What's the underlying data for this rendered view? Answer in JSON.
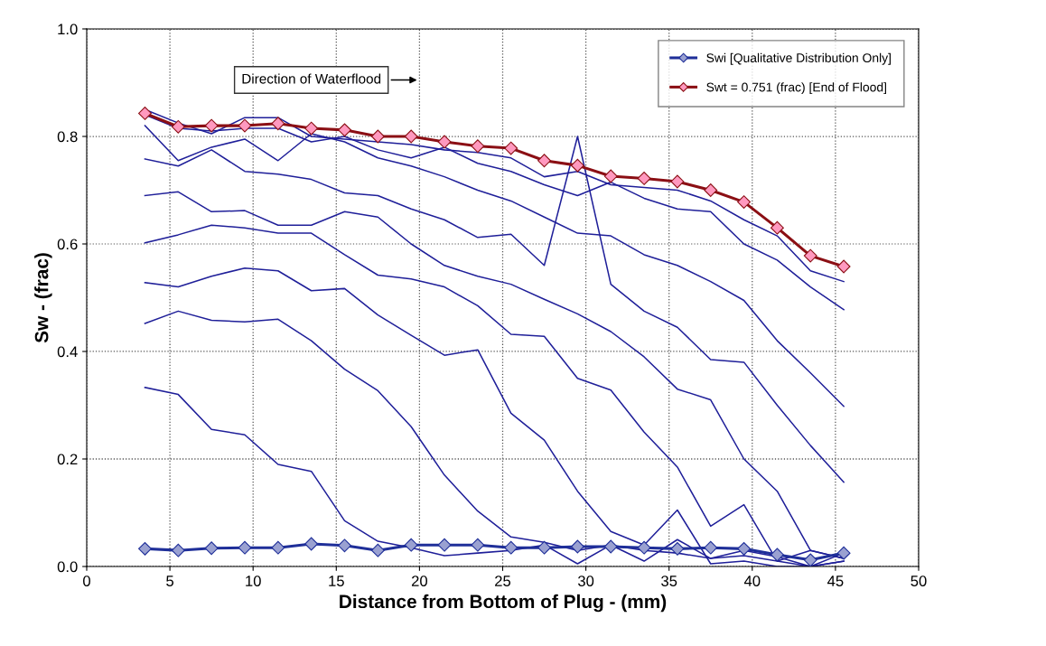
{
  "chart_data": {
    "type": "line",
    "xlabel": "Distance from Bottom of Plug - (mm)",
    "ylabel": "Sw - (frac)",
    "annotations": [
      "Direction of Waterflood"
    ],
    "x": [
      3.5,
      5.5,
      7.5,
      9.5,
      11.5,
      13.5,
      15.5,
      17.5,
      19.5,
      21.5,
      23.5,
      25.5,
      27.5,
      29.5,
      31.5,
      33.5,
      35.5,
      37.5,
      39.5,
      41.5,
      43.5,
      45.5
    ],
    "series": [
      {
        "color": "#1f1f99",
        "values": [
          0.85,
          0.825,
          0.805,
          0.835,
          0.835,
          0.8,
          0.795,
          0.79,
          0.785,
          0.775,
          0.77,
          0.76,
          0.725,
          0.735,
          0.71,
          0.705,
          0.7,
          0.68,
          0.645,
          0.615,
          0.55,
          0.53
        ]
      },
      {
        "color": "#1f1f99",
        "values": [
          0.84,
          0.815,
          0.81,
          0.815,
          0.815,
          0.79,
          0.8,
          0.775,
          0.76,
          0.78,
          0.75,
          0.735,
          0.71,
          0.69,
          0.715,
          0.685,
          0.665,
          0.66,
          0.6,
          0.57,
          0.52,
          0.478
        ]
      },
      {
        "color": "#1f1f99",
        "values": [
          0.82,
          0.755,
          0.78,
          0.795,
          0.755,
          0.805,
          0.79,
          0.76,
          0.745,
          0.725,
          0.7,
          0.68,
          0.65,
          0.62,
          0.615,
          0.58,
          0.56,
          0.53,
          0.495,
          0.42,
          0.36,
          0.298
        ]
      },
      {
        "color": "#1f1f99",
        "values": [
          0.758,
          0.745,
          0.775,
          0.735,
          0.73,
          0.72,
          0.695,
          0.69,
          0.665,
          0.645,
          0.612,
          0.618,
          0.56,
          0.8,
          0.525,
          0.475,
          0.445,
          0.385,
          0.38,
          0.3,
          0.225,
          0.157
        ]
      },
      {
        "color": "#1f1f99",
        "values": [
          0.69,
          0.697,
          0.66,
          0.662,
          0.635,
          0.635,
          0.66,
          0.65,
          0.6,
          0.56,
          0.54,
          0.525,
          0.497,
          0.47,
          0.437,
          0.39,
          0.33,
          0.31,
          0.2,
          0.14,
          0.03,
          0.015
        ]
      },
      {
        "color": "#1f1f99",
        "values": [
          0.602,
          0.617,
          0.635,
          0.63,
          0.62,
          0.62,
          0.58,
          0.542,
          0.535,
          0.52,
          0.485,
          0.432,
          0.428,
          0.35,
          0.328,
          0.25,
          0.185,
          0.075,
          0.115,
          0.01,
          0.0,
          0.025
        ]
      },
      {
        "color": "#1f1f99",
        "values": [
          0.528,
          0.52,
          0.54,
          0.555,
          0.55,
          0.513,
          0.517,
          0.468,
          0.43,
          0.393,
          0.403,
          0.285,
          0.235,
          0.14,
          0.065,
          0.04,
          0.105,
          0.005,
          0.01,
          0.0,
          0.0,
          0.01
        ]
      },
      {
        "color": "#1f1f99",
        "values": [
          0.452,
          0.475,
          0.458,
          0.455,
          0.46,
          0.42,
          0.367,
          0.327,
          0.26,
          0.17,
          0.103,
          0.055,
          0.045,
          0.03,
          0.04,
          0.01,
          0.05,
          0.015,
          0.03,
          0.018,
          0.0,
          0.01
        ]
      },
      {
        "color": "#1f1f99",
        "values": [
          0.333,
          0.32,
          0.255,
          0.245,
          0.19,
          0.177,
          0.085,
          0.047,
          0.035,
          0.02,
          0.025,
          0.03,
          0.04,
          0.005,
          0.04,
          0.03,
          0.025,
          0.015,
          0.02,
          0.01,
          0.03,
          0.015
        ]
      },
      {
        "name": "Swi [Qualitative Distribution Only]",
        "color": "#1f2f99",
        "marker": "diamond",
        "values": [
          0.033,
          0.03,
          0.034,
          0.035,
          0.035,
          0.042,
          0.039,
          0.03,
          0.04,
          0.04,
          0.04,
          0.035,
          0.035,
          0.037,
          0.037,
          0.035,
          0.033,
          0.035,
          0.033,
          0.022,
          0.012,
          0.025
        ]
      },
      {
        "name": "Swt = 0.751 (frac) [End of Flood]",
        "color": "#8b0f14",
        "marker": "diamond",
        "values": [
          0.843,
          0.818,
          0.82,
          0.82,
          0.824,
          0.815,
          0.812,
          0.8,
          0.8,
          0.79,
          0.782,
          0.778,
          0.755,
          0.746,
          0.726,
          0.722,
          0.716,
          0.7,
          0.678,
          0.63,
          0.578,
          0.558
        ]
      }
    ],
    "xlim": [
      0,
      50
    ],
    "xticks": [
      0,
      5,
      10,
      15,
      20,
      25,
      30,
      35,
      40,
      45,
      50
    ],
    "ylim": [
      0,
      1
    ],
    "yticks": [
      {
        "value": 0,
        "label": "0.0"
      },
      {
        "value": 0.2,
        "label": "0.2"
      },
      {
        "value": 0.4,
        "label": "0.4"
      },
      {
        "value": 0.6,
        "label": "0.6"
      },
      {
        "value": 0.8,
        "label": "0.8"
      },
      {
        "value": 1,
        "label": "1.0"
      }
    ],
    "grid": true,
    "legend": "top right"
  }
}
